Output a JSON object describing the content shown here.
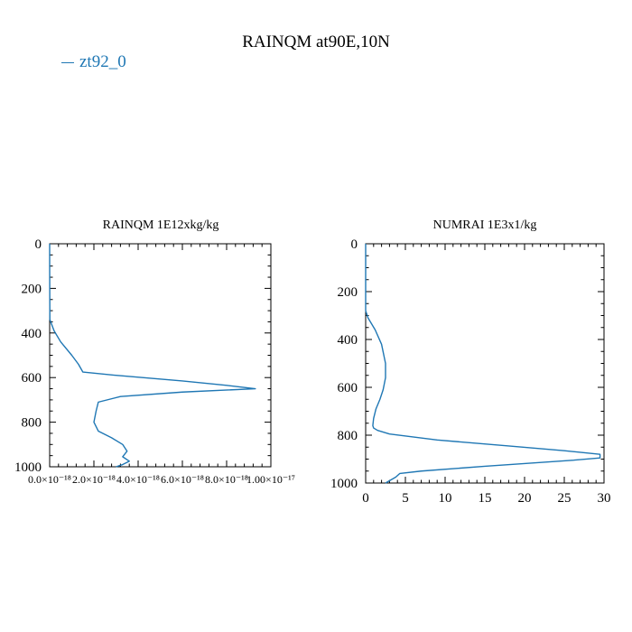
{
  "figure": {
    "title": "RAINQM at90E,10N",
    "legend_label": "zt92_0",
    "series_color": "#1f77b4"
  },
  "chart_data": [
    {
      "type": "line",
      "title": "RAINQM  1E12xkg/kg",
      "xlabel": "",
      "ylabel": "",
      "xlim": [
        0,
        1e-17
      ],
      "ylim": [
        1000,
        0
      ],
      "y_inverted": true,
      "x_ticks": [
        0,
        2e-18,
        4e-18,
        6e-18,
        8e-18,
        1e-17
      ],
      "x_tick_labels": [
        "0.0×10⁻¹⁸",
        "2.0×10⁻¹⁸",
        "4.0×10⁻¹⁸",
        "6.0×10⁻¹⁸",
        "8.0×10⁻¹⁸",
        "1.00×10⁻¹⁷"
      ],
      "y_ticks": [
        0,
        200,
        400,
        600,
        800,
        1000
      ],
      "y_tick_labels": [
        "0",
        "200",
        "400",
        "600",
        "800",
        "1000"
      ],
      "grid": false,
      "series": [
        {
          "name": "zt92_0",
          "x": [
            0,
            0,
            1e-20,
            2e-19,
            5e-19,
            1e-18,
            1.3e-18,
            1.5e-18,
            3e-18,
            6e-18,
            8e-18,
            9.3e-18,
            6e-18,
            3.2e-18,
            2.2e-18,
            2.1e-18,
            2e-18,
            2.2e-18,
            2.8e-18,
            3.3e-18,
            3.5e-18,
            3.3e-18,
            3.6e-18,
            3.3e-18,
            3e-18
          ],
          "y": [
            0,
            100,
            340,
            390,
            440,
            500,
            540,
            575,
            590,
            615,
            635,
            650,
            665,
            685,
            710,
            750,
            800,
            840,
            870,
            900,
            930,
            955,
            975,
            990,
            1000
          ]
        }
      ]
    },
    {
      "type": "line",
      "title": "NUMRAI  1E3x1/kg",
      "xlabel": "",
      "ylabel": "",
      "xlim": [
        0,
        30
      ],
      "ylim": [
        1000,
        0
      ],
      "y_inverted": true,
      "x_ticks": [
        0,
        5,
        10,
        15,
        20,
        25,
        30
      ],
      "x_tick_labels": [
        "0",
        "5",
        "10",
        "15",
        "20",
        "25",
        "30"
      ],
      "y_ticks": [
        0,
        200,
        400,
        600,
        800,
        1000
      ],
      "y_tick_labels": [
        "0",
        "200",
        "400",
        "600",
        "800",
        "1000"
      ],
      "grid": false,
      "series": [
        {
          "name": "zt92_0",
          "x": [
            0,
            0,
            0.3,
            1.2,
            2.0,
            2.5,
            2.5,
            2.2,
            1.8,
            1.3,
            1.0,
            0.9,
            1.0,
            1.5,
            3.0,
            9,
            18,
            25,
            29.5,
            29.5,
            26,
            15,
            7,
            4.3,
            3.8,
            2.5
          ],
          "y": [
            0,
            280,
            310,
            360,
            420,
            500,
            560,
            610,
            650,
            690,
            730,
            760,
            770,
            780,
            795,
            820,
            845,
            865,
            880,
            895,
            905,
            930,
            950,
            960,
            975,
            1000
          ]
        }
      ]
    }
  ]
}
